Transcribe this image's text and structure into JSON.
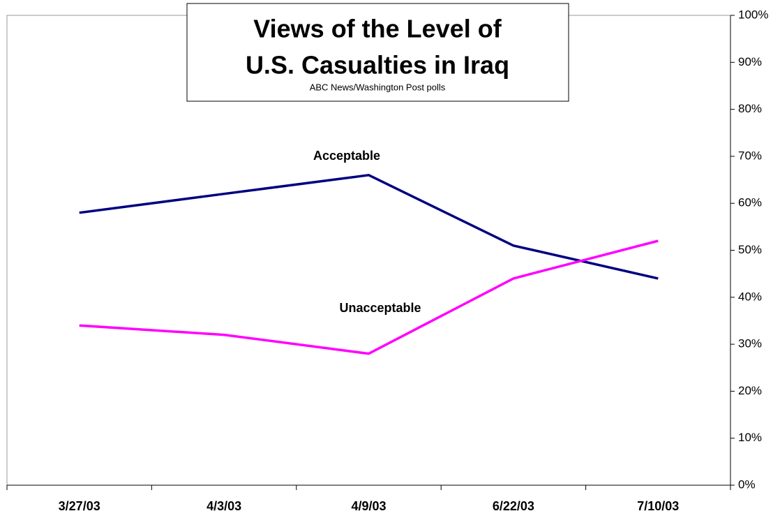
{
  "chart_data": {
    "type": "line",
    "title": [
      "Views of the Level of",
      "U.S. Casualties in Iraq"
    ],
    "subtitle": "ABC News/Washington Post polls",
    "categories": [
      "3/27/03",
      "4/3/03",
      "4/9/03",
      "6/22/03",
      "7/10/03"
    ],
    "series": [
      {
        "name": "Acceptable",
        "color": "#000080",
        "values": [
          58,
          62,
          66,
          51,
          44
        ]
      },
      {
        "name": "Unacceptable",
        "color": "#ff00ff",
        "values": [
          34,
          32,
          28,
          44,
          52
        ]
      }
    ],
    "ylim": [
      0,
      100
    ],
    "yticks": [
      {
        "value": 0,
        "label": "0%"
      },
      {
        "value": 10,
        "label": "10%"
      },
      {
        "value": 20,
        "label": "20%"
      },
      {
        "value": 30,
        "label": "30%"
      },
      {
        "value": 40,
        "label": "40%"
      },
      {
        "value": 50,
        "label": "50%"
      },
      {
        "value": 60,
        "label": "60%"
      },
      {
        "value": 70,
        "label": "70%"
      },
      {
        "value": 80,
        "label": "80%"
      },
      {
        "value": 90,
        "label": "90%"
      },
      {
        "value": 100,
        "label": "100%"
      }
    ],
    "y_axis_side": "right"
  }
}
